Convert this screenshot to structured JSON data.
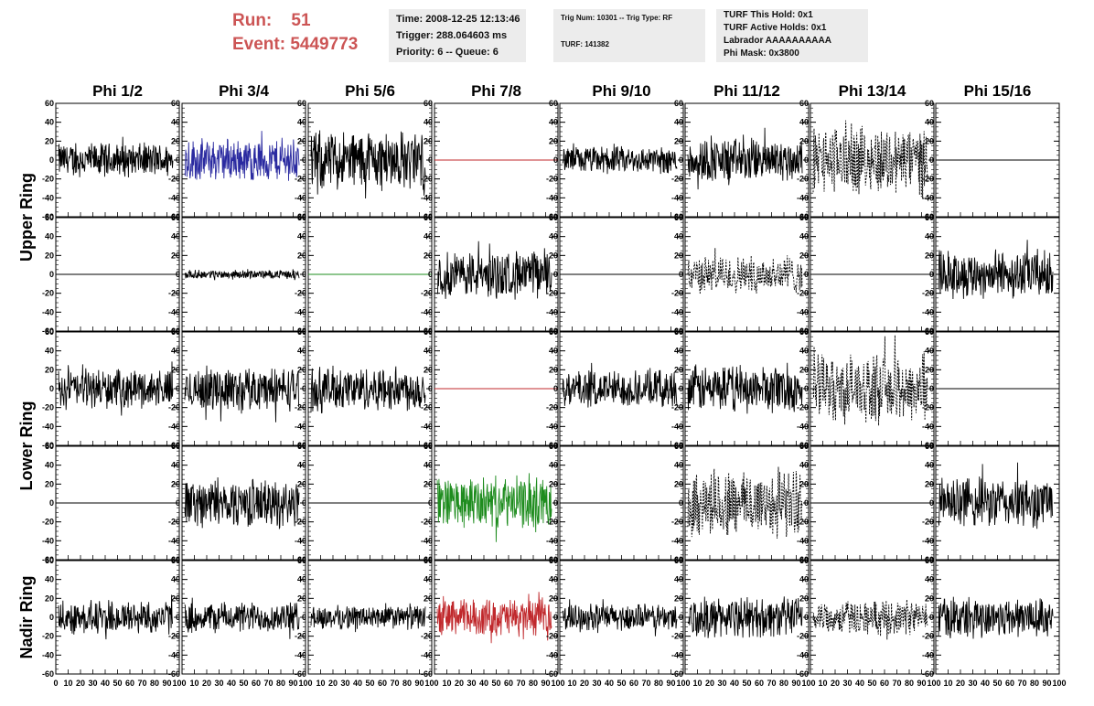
{
  "run": {
    "run_label": "Run:",
    "run_value": "51",
    "event_label": "Event:",
    "event_value": "5449773"
  },
  "info": {
    "time": "Time: 2008-12-25 12:13:46",
    "trigger": "Trigger: 288.064603 ms",
    "priority": "Priority: 6 -- Queue: 6",
    "trig_num": "Trig Num: 10301 -- Trig Type: RF",
    "turf": "TURF: 141382",
    "turf_this_hold": "TURF This Hold: 0x1",
    "turf_active_holds": "TURF Active Holds: 0x1",
    "labrador": "Labrador AAAAAAAAAA",
    "phi_mask": "Phi Mask: 0x3800"
  },
  "colors": {
    "header_text": "#cc5555",
    "black": "#000000",
    "blue": "#2a2aa0",
    "red": "#c0282c",
    "green": "#1e8c1e"
  },
  "chart_data": {
    "type": "line",
    "columns": [
      "Phi 1/2",
      "Phi 3/4",
      "Phi 5/6",
      "Phi 7/8",
      "Phi 9/10",
      "Phi 11/12",
      "Phi 13/14",
      "Phi 15/16"
    ],
    "ring_labels": [
      {
        "label": "Upper Ring",
        "rows": [
          0,
          1
        ]
      },
      {
        "label": "Lower Ring",
        "rows": [
          2,
          3
        ]
      },
      {
        "label": "Nadir Ring",
        "rows": [
          4,
          4
        ]
      }
    ],
    "ylim": [
      -60,
      60
    ],
    "xlim": [
      0,
      100
    ],
    "y_ticks": [
      "-60",
      "-40",
      "-20",
      "0",
      "20",
      "40",
      "60"
    ],
    "x_ticks": [
      "0",
      "10",
      "20",
      "30",
      "40",
      "50",
      "60",
      "70",
      "80",
      "90",
      "100"
    ],
    "panels": [
      [
        {
          "style": "solid",
          "color": "black",
          "amp": 20
        },
        {
          "style": "solid",
          "color": "blue",
          "amp": 25
        },
        {
          "style": "solid",
          "color": "black",
          "amp": 35
        },
        {
          "style": "flat",
          "color": "red",
          "amp": 0
        },
        {
          "style": "solid",
          "color": "black",
          "amp": 16
        },
        {
          "style": "solid",
          "color": "black",
          "amp": 26
        },
        {
          "style": "dashed",
          "color": "black",
          "amp": 40
        },
        {
          "style": "flat",
          "color": "black",
          "amp": 0
        }
      ],
      [
        {
          "style": "flat",
          "color": "black",
          "amp": 0
        },
        {
          "style": "solid",
          "color": "black",
          "amp": 5
        },
        {
          "style": "flat",
          "color": "green",
          "amp": 0
        },
        {
          "style": "solid",
          "color": "black",
          "amp": 28
        },
        {
          "style": "flat",
          "color": "black",
          "amp": 0
        },
        {
          "style": "dashed",
          "color": "black",
          "amp": 22
        },
        {
          "style": "flat",
          "color": "black",
          "amp": 0
        },
        {
          "style": "solid",
          "color": "black",
          "amp": 28
        }
      ],
      [
        {
          "style": "solid",
          "color": "black",
          "amp": 22
        },
        {
          "style": "solid",
          "color": "black",
          "amp": 26
        },
        {
          "style": "solid",
          "color": "black",
          "amp": 26
        },
        {
          "style": "flat",
          "color": "red",
          "amp": 0
        },
        {
          "style": "solid",
          "color": "black",
          "amp": 22
        },
        {
          "style": "solid",
          "color": "black",
          "amp": 28
        },
        {
          "style": "dashed",
          "color": "black",
          "amp": 40
        },
        {
          "style": "flat",
          "color": "black",
          "amp": 0
        }
      ],
      [
        {
          "style": "flat",
          "color": "black",
          "amp": 0
        },
        {
          "style": "solid",
          "color": "black",
          "amp": 28
        },
        {
          "style": "flat",
          "color": "black",
          "amp": 0
        },
        {
          "style": "solid",
          "color": "green",
          "amp": 30
        },
        {
          "style": "flat",
          "color": "black",
          "amp": 0
        },
        {
          "style": "dashed",
          "color": "black",
          "amp": 40
        },
        {
          "style": "flat",
          "color": "black",
          "amp": 0
        },
        {
          "style": "solid",
          "color": "black",
          "amp": 30
        }
      ],
      [
        {
          "style": "solid",
          "color": "black",
          "amp": 20
        },
        {
          "style": "solid",
          "color": "black",
          "amp": 18
        },
        {
          "style": "solid",
          "color": "black",
          "amp": 14
        },
        {
          "style": "solid",
          "color": "red",
          "amp": 22
        },
        {
          "style": "solid",
          "color": "black",
          "amp": 16
        },
        {
          "style": "solid",
          "color": "black",
          "amp": 24
        },
        {
          "style": "dashed",
          "color": "black",
          "amp": 20
        },
        {
          "style": "solid",
          "color": "black",
          "amp": 24
        }
      ]
    ]
  }
}
